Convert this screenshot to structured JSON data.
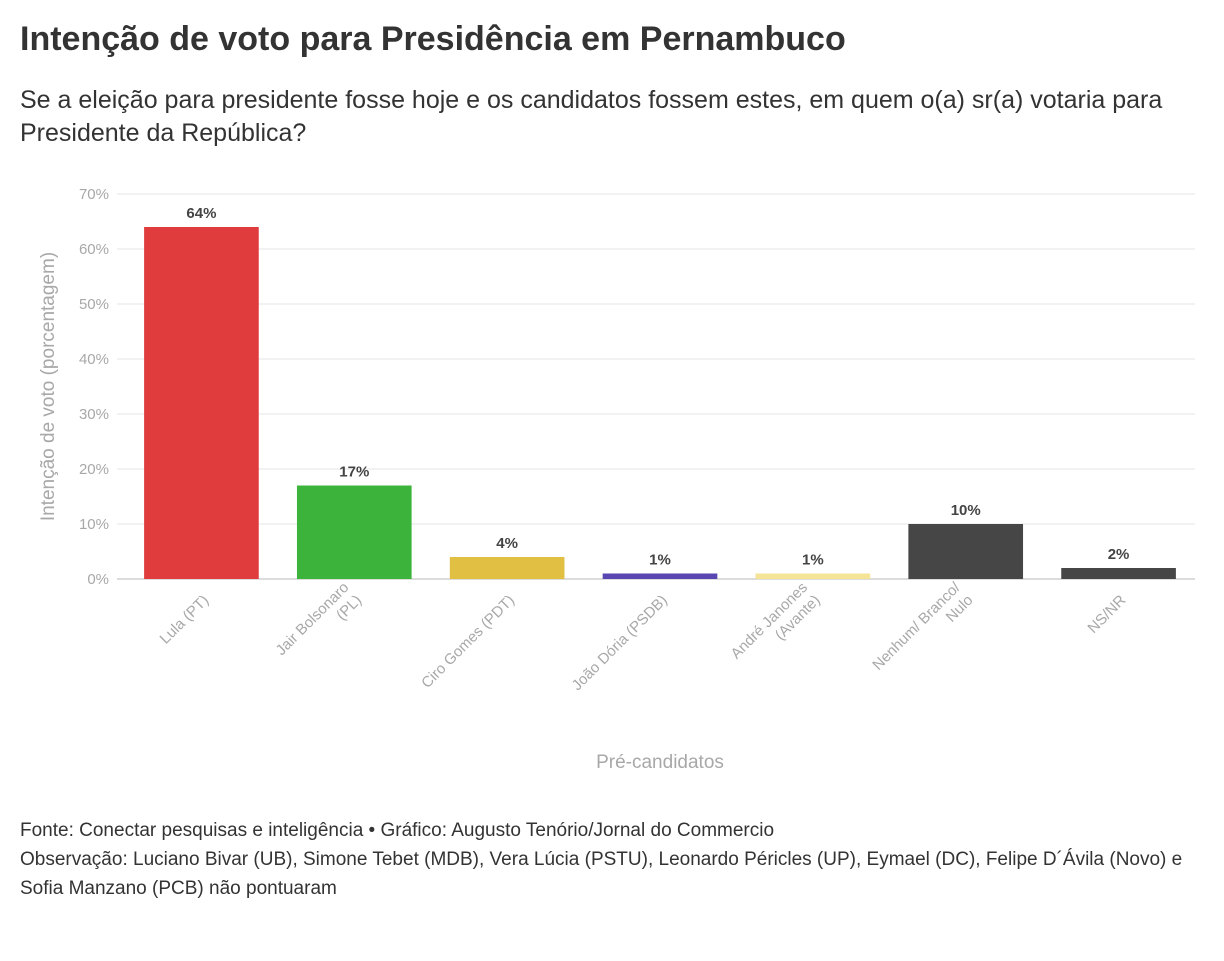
{
  "title": "Intenção de voto para Presidência em Pernambuco",
  "subtitle": "Se a eleição para presidente fosse hoje e os candidatos fossem estes, em quem o(a) sr(a) votaria para Presidente da República?",
  "footer": {
    "source": "Fonte: Conectar pesquisas e inteligência • Gráfico: Augusto Tenório/Jornal do Commercio",
    "note": "Observação: Luciano Bivar (UB), Simone Tebet (MDB), Vera Lúcia (PSTU), Leonardo Péricles (UP), Eymael (DC), Felipe D´Ávila (Novo) e Sofia Manzano (PCB) não pontuaram"
  },
  "chart_data": {
    "type": "bar",
    "title": "Intenção de voto para Presidência em Pernambuco",
    "xlabel": "Pré-candidatos",
    "ylabel": "Intenção de voto (porcentagem)",
    "ylim": [
      0,
      70
    ],
    "yticks": [
      0,
      10,
      20,
      30,
      40,
      50,
      60,
      70
    ],
    "ytick_labels": [
      "0%",
      "10%",
      "20%",
      "30%",
      "40%",
      "50%",
      "60%",
      "70%"
    ],
    "grid": true,
    "categories": [
      [
        "Lula (PT)"
      ],
      [
        "Jair Bolsonaro",
        "(PL)"
      ],
      [
        "Ciro Gomes (PDT)"
      ],
      [
        "João Dória (PSDB)"
      ],
      [
        "André Janones",
        "(Avante)"
      ],
      [
        "Nenhum/ Branco/",
        "Nulo"
      ],
      [
        "NS/NR"
      ]
    ],
    "values": [
      64,
      17,
      4,
      1,
      1,
      10,
      2
    ],
    "value_labels": [
      "64%",
      "17%",
      "4%",
      "1%",
      "1%",
      "10%",
      "2%"
    ],
    "colors": [
      "#e03c3e",
      "#3cb43c",
      "#e0bf42",
      "#5a46b0",
      "#f5e496",
      "#464646",
      "#464646"
    ]
  }
}
